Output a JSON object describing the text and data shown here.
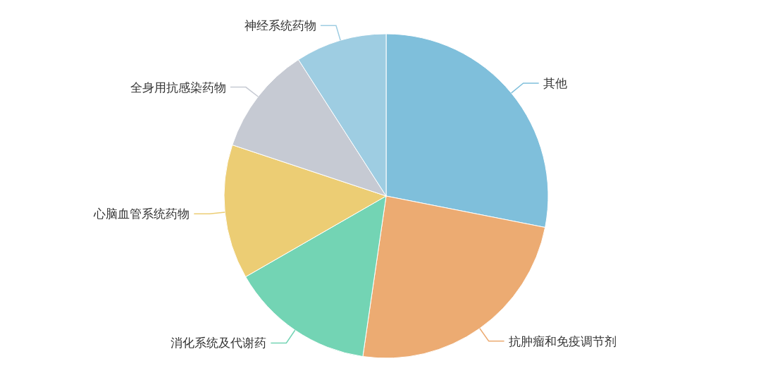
{
  "chart_data": {
    "type": "pie",
    "categories": [
      "其他",
      "抗肿瘤和免疫调节剂",
      "消化系统及代谢药",
      "心脑血管系统药物",
      "全身用抗感染药物",
      "神经系统药物"
    ],
    "values": [
      28.1,
      24.2,
      14.4,
      13.4,
      10.8,
      9.1
    ],
    "colors": [
      "#7fbfdb",
      "#ecab72",
      "#73d4b4",
      "#eccd74",
      "#c6cad3",
      "#9ecde2"
    ]
  }
}
